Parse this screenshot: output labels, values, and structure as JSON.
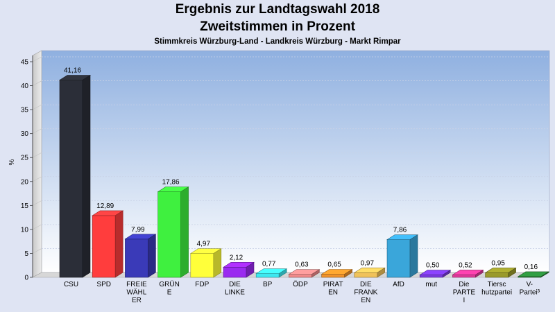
{
  "header": {
    "title_line1": "Ergebnis zur Landtagswahl 2018",
    "title_line2": "Zweitstimmen in Prozent",
    "subtitle": "Stimmkreis Würzburg-Land - Landkreis Würzburg - Markt Rimpar"
  },
  "chart_data": {
    "type": "bar",
    "title": "Ergebnis zur Landtagswahl 2018 Zweitstimmen in Prozent",
    "subtitle": "Stimmkreis Würzburg-Land - Landkreis Würzburg - Markt Rimpar",
    "xlabel": "",
    "ylabel": "%",
    "ylim": [
      0,
      45
    ],
    "yticks": [
      0,
      5,
      10,
      15,
      20,
      25,
      30,
      35,
      40,
      45
    ],
    "grid": true,
    "categories": [
      [
        "CSU"
      ],
      [
        "SPD"
      ],
      [
        "FREIE",
        "WÄHL",
        "ER"
      ],
      [
        "GRÜN",
        "E"
      ],
      [
        "FDP"
      ],
      [
        "DIE",
        "LINKE"
      ],
      [
        "BP"
      ],
      [
        "ÖDP"
      ],
      [
        "PIRAT",
        "EN"
      ],
      [
        "DIE",
        "FRANK",
        "EN"
      ],
      [
        "AfD"
      ],
      [
        "mut"
      ],
      [
        "Die",
        "PARTE",
        "I"
      ],
      [
        "Tiersc",
        "hutzpartei"
      ],
      [
        "V-",
        "Partei³"
      ]
    ],
    "values": [
      41.16,
      12.89,
      7.99,
      17.86,
      4.97,
      2.12,
      0.77,
      0.63,
      0.65,
      0.97,
      7.86,
      0.5,
      0.52,
      0.95,
      0.16
    ],
    "value_labels": [
      "41,16",
      "12,89",
      "7,99",
      "17,86",
      "4,97",
      "2,12",
      "0,77",
      "0,63",
      "0,65",
      "0,97",
      "7,86",
      "0,50",
      "0,52",
      "0,95",
      "0,16"
    ],
    "colors": [
      "#2b2e38",
      "#ff3d3d",
      "#3a3ab8",
      "#3ff03f",
      "#ffff3a",
      "#9a2bf0",
      "#3de8f0",
      "#f08a8a",
      "#f0922b",
      "#f0c25a",
      "#3aa6da",
      "#7a3ae0",
      "#e03a9a",
      "#9a9a2b",
      "#2b8a3a"
    ]
  }
}
